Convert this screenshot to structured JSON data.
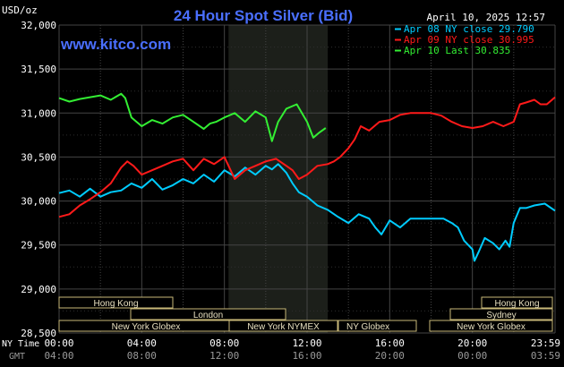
{
  "header": {
    "unit": "USD/oz",
    "title": "24 Hour Spot Silver (Bid)",
    "timestamp": "April 10, 2025 12:57",
    "brand": "www.kitco.com"
  },
  "legend": [
    {
      "label": "Apr 08 NY close 29.790",
      "color": "#00ccff"
    },
    {
      "label": "Apr 09 NY close 30.995",
      "color": "#ff1a1a"
    },
    {
      "label": "Apr 10 Last 30.835",
      "color": "#33ee33"
    }
  ],
  "colors": {
    "background": "#000000",
    "plot": "#000000",
    "grid": "#444444",
    "highlight_band": "#1c1f1a",
    "title": "#4a6fff",
    "brand": "#4a6fff",
    "session_fill": "#000000",
    "session_border": "#c8b878",
    "session_text": "#e8e0c0",
    "axis_text": "#ffffff",
    "gmt_text": "#9a9a9a"
  },
  "axis": {
    "row_labels": {
      "ny": "NY Time",
      "gmt": "GMT"
    },
    "x_ny": [
      "00:00",
      "04:00",
      "08:00",
      "12:00",
      "16:00",
      "20:00",
      "23:59"
    ],
    "x_gmt": [
      "04:00",
      "08:00",
      "12:00",
      "16:00",
      "20:00",
      "00:00",
      "03:59"
    ],
    "y_ticks": [
      "32,000",
      "31,500",
      "31,000",
      "30,500",
      "30,000",
      "29,500",
      "29,000",
      "28,500"
    ]
  },
  "sessions": [
    {
      "label": "Hong Kong"
    },
    {
      "label": "London"
    },
    {
      "label": "New York Globex"
    },
    {
      "label": "New York NYMEX"
    },
    {
      "label": "NY Globex"
    },
    {
      "label": "Hong Kong"
    },
    {
      "label": "Sydney"
    },
    {
      "label": "New York Globex"
    }
  ],
  "chart_data": {
    "type": "line",
    "x_unit": "hours (NY time)",
    "xlim": [
      0,
      24
    ],
    "ylim": [
      28.5,
      32.0
    ],
    "y_ticks": [
      32.0,
      31.5,
      31.0,
      30.5,
      30.0,
      29.5,
      29.0,
      28.5
    ],
    "highlight_band_hours": [
      8.2,
      13.0
    ],
    "series": [
      {
        "name": "Apr 08 NY close 29.790",
        "color": "#00ccff",
        "x": [
          0,
          0.5,
          1,
          1.5,
          2,
          2.5,
          3,
          3.5,
          4,
          4.5,
          5,
          5.5,
          6,
          6.5,
          7,
          7.5,
          8,
          8.5,
          9,
          9.5,
          10,
          10.3,
          10.6,
          11,
          11.3,
          11.6,
          12,
          12.5,
          13,
          13.5,
          14,
          14.5,
          15,
          15.3,
          15.6,
          16,
          16.5,
          17,
          17.5,
          18,
          18.3,
          18.6,
          19,
          19.3,
          19.6,
          20,
          20.1,
          20.3,
          20.6,
          21,
          21.3,
          21.6,
          21.8,
          22,
          22.3,
          22.6,
          23,
          23.5,
          24
        ],
        "y": [
          30.09,
          30.12,
          30.05,
          30.14,
          30.05,
          30.1,
          30.12,
          30.2,
          30.15,
          30.25,
          30.13,
          30.18,
          30.25,
          30.2,
          30.3,
          30.22,
          30.35,
          30.28,
          30.38,
          30.3,
          30.4,
          30.36,
          30.42,
          30.32,
          30.2,
          30.1,
          30.05,
          29.95,
          29.9,
          29.82,
          29.75,
          29.85,
          29.8,
          29.7,
          29.62,
          29.78,
          29.7,
          29.8,
          29.8,
          29.8,
          29.8,
          29.8,
          29.75,
          29.7,
          29.55,
          29.45,
          29.32,
          29.42,
          29.58,
          29.52,
          29.45,
          29.55,
          29.48,
          29.75,
          29.92,
          29.92,
          29.95,
          29.97,
          29.89
        ]
      },
      {
        "name": "Apr 09 NY close 30.995",
        "color": "#ff1a1a",
        "x": [
          0,
          0.5,
          1,
          1.5,
          2,
          2.5,
          3,
          3.3,
          3.6,
          4,
          4.5,
          5,
          5.5,
          6,
          6.5,
          7,
          7.5,
          8,
          8.5,
          9,
          9.5,
          10,
          10.5,
          11,
          11.3,
          11.6,
          12,
          12.5,
          13,
          13.3,
          13.6,
          14,
          14.3,
          14.6,
          15,
          15.5,
          16,
          16.5,
          17,
          17.5,
          18,
          18.5,
          19,
          19.5,
          20,
          20.5,
          21,
          21.5,
          22,
          22.3,
          22.6,
          23,
          23.3,
          23.6,
          24
        ],
        "y": [
          29.82,
          29.85,
          29.95,
          30.02,
          30.1,
          30.2,
          30.38,
          30.45,
          30.4,
          30.3,
          30.35,
          30.4,
          30.45,
          30.48,
          30.35,
          30.48,
          30.42,
          30.5,
          30.25,
          30.35,
          30.4,
          30.45,
          30.48,
          30.4,
          30.35,
          30.25,
          30.3,
          30.4,
          30.42,
          30.45,
          30.5,
          30.6,
          30.7,
          30.85,
          30.8,
          30.9,
          30.92,
          30.98,
          31.0,
          31.0,
          31.0,
          30.97,
          30.9,
          30.85,
          30.83,
          30.85,
          30.9,
          30.85,
          30.9,
          31.1,
          31.12,
          31.15,
          31.1,
          31.1,
          31.18
        ]
      },
      {
        "name": "Apr 10 Last 30.835",
        "color": "#33ee33",
        "x": [
          0,
          0.5,
          1,
          1.5,
          2,
          2.5,
          3,
          3.2,
          3.5,
          4,
          4.5,
          5,
          5.5,
          6,
          6.5,
          7,
          7.3,
          7.6,
          8,
          8.5,
          9,
          9.5,
          10,
          10.3,
          10.6,
          11,
          11.5,
          12,
          12.3,
          12.6,
          12.9
        ],
        "y": [
          31.17,
          31.13,
          31.16,
          31.18,
          31.2,
          31.15,
          31.22,
          31.17,
          30.95,
          30.85,
          30.92,
          30.88,
          30.95,
          30.98,
          30.9,
          30.82,
          30.88,
          30.9,
          30.95,
          31.0,
          30.9,
          31.02,
          30.95,
          30.68,
          30.9,
          31.05,
          31.1,
          30.9,
          30.72,
          30.78,
          30.83
        ]
      }
    ]
  }
}
